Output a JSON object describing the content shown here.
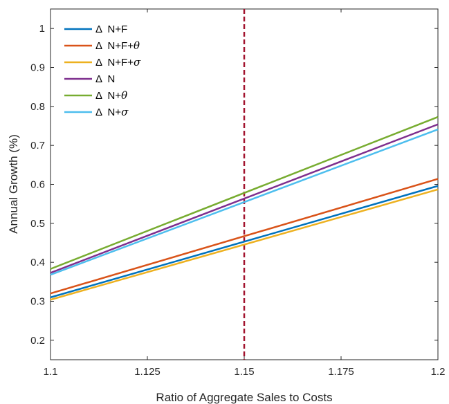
{
  "chart_data": {
    "type": "line",
    "xlabel": "Ratio of Aggregate Sales to Costs",
    "ylabel": "Annual Growth (%)",
    "xlim": [
      1.1,
      1.2
    ],
    "ylim": [
      0.15,
      1.05
    ],
    "xticks": [
      1.1,
      1.125,
      1.15,
      1.175,
      1.2
    ],
    "xtick_labels": [
      "1.1",
      "1.125",
      "1.15",
      "1.175",
      "1.2"
    ],
    "yticks": [
      0.2,
      0.3,
      0.4,
      0.5,
      0.6,
      0.7,
      0.8,
      0.9,
      1.0
    ],
    "ytick_labels": [
      "0.2",
      "0.3",
      "0.4",
      "0.5",
      "0.6",
      "0.7",
      "0.8",
      "0.9",
      "1"
    ],
    "grid": false,
    "legend_position": "top-left",
    "vline": {
      "x": 1.15,
      "color": "#A2142F",
      "style": "dashed"
    },
    "series": [
      {
        "name": "Δ  N+F",
        "base": "Δ  N+F",
        "sym": "",
        "color": "#0072BD",
        "x": [
          1.1,
          1.2
        ],
        "y": [
          0.31,
          0.596
        ]
      },
      {
        "name": "Δ  N+F+θ",
        "base": "Δ  N+F+",
        "sym": "θ",
        "color": "#D95319",
        "x": [
          1.1,
          1.2
        ],
        "y": [
          0.32,
          0.614
        ]
      },
      {
        "name": "Δ  N+F+σ",
        "base": "Δ  N+F+",
        "sym": "σ",
        "color": "#EDB120",
        "x": [
          1.1,
          1.2
        ],
        "y": [
          0.304,
          0.587
        ]
      },
      {
        "name": "Δ  N",
        "base": "Δ  N",
        "sym": "",
        "color": "#7E2F8E",
        "x": [
          1.1,
          1.2
        ],
        "y": [
          0.373,
          0.754
        ]
      },
      {
        "name": "Δ  N+θ",
        "base": "Δ  N+",
        "sym": "θ",
        "color": "#77AC30",
        "x": [
          1.1,
          1.2
        ],
        "y": [
          0.383,
          0.773
        ]
      },
      {
        "name": "Δ  N+σ",
        "base": "Δ  N+",
        "sym": "σ",
        "color": "#4DBEEE",
        "x": [
          1.1,
          1.2
        ],
        "y": [
          0.368,
          0.741
        ]
      }
    ]
  }
}
